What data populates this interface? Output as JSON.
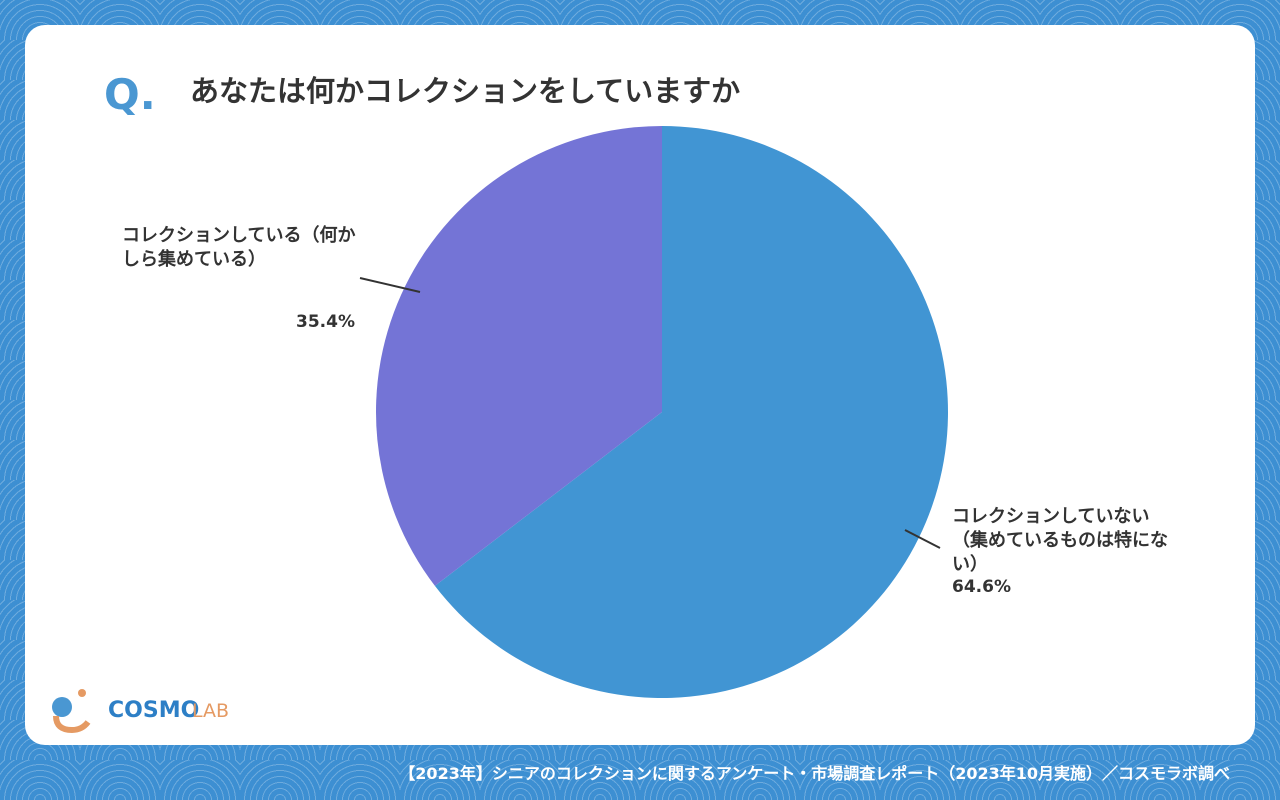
{
  "header": {
    "mark": "Q."
  },
  "chart_data": {
    "type": "pie",
    "title": "あなたは何かコレクションをしていますか",
    "categories": [
      "コレクションしていない（集めているものは特にない）",
      "コレクションしている（何かしら集めている）"
    ],
    "values": [
      64.6,
      35.4
    ],
    "value_labels": [
      "64.6%",
      "35.4%"
    ],
    "colors": [
      "#4195d3",
      "#7474d6"
    ]
  },
  "logo": {
    "left": "COSMO",
    "right": "LAB"
  },
  "footer": "【2023年】シニアのコレクションに関するアンケート・市場調査レポート（2023年10月実施）／コスモラボ調べ"
}
